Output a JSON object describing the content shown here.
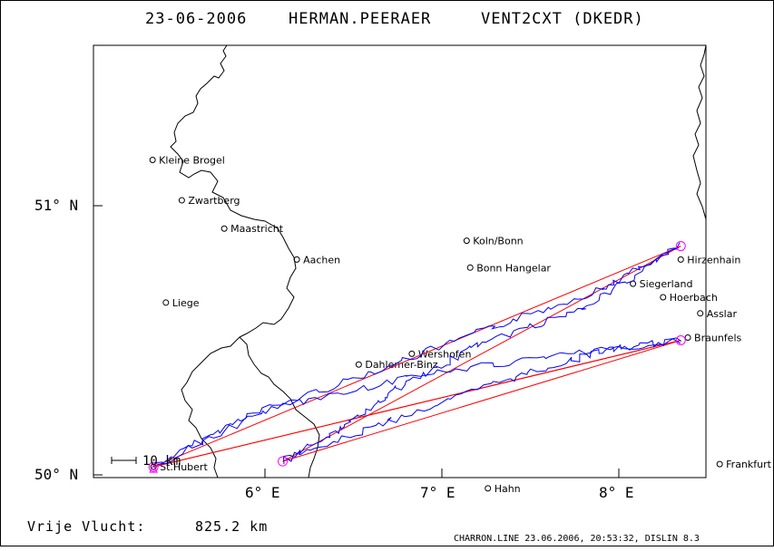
{
  "title": {
    "date": "23-06-2006",
    "pilot": "HERMAN.PEERAER",
    "glider": "VENT2CXT (DKEDR)"
  },
  "axes": {
    "lat_labels": [
      "51° N",
      "50° N"
    ],
    "lon_labels": [
      "6° E",
      "7° E",
      "8° E"
    ],
    "lat_range": [
      49.995,
      51.58
    ],
    "lon_range": [
      5.08,
      8.55
    ]
  },
  "scale": {
    "label": "10 km"
  },
  "places": [
    {
      "name": "Kleine Brogel",
      "lon": 5.365,
      "lat": 51.17
    },
    {
      "name": "Zwartberg",
      "lon": 5.53,
      "lat": 51.02
    },
    {
      "name": "Maastricht",
      "lon": 5.77,
      "lat": 50.915
    },
    {
      "name": "Aachen",
      "lon": 6.18,
      "lat": 50.8
    },
    {
      "name": "Liege",
      "lon": 5.44,
      "lat": 50.64
    },
    {
      "name": "Koln/Bonn",
      "lon": 7.14,
      "lat": 50.87
    },
    {
      "name": "Bonn Hangelar",
      "lon": 7.16,
      "lat": 50.77
    },
    {
      "name": "Siegerland",
      "lon": 8.08,
      "lat": 50.71
    },
    {
      "name": "Hoerbach",
      "lon": 8.25,
      "lat": 50.66
    },
    {
      "name": "Hirzenhain",
      "lon": 8.35,
      "lat": 50.8
    },
    {
      "name": "Asslar",
      "lon": 8.46,
      "lat": 50.6
    },
    {
      "name": "Braunfels",
      "lon": 8.39,
      "lat": 50.51
    },
    {
      "name": "Wershofen",
      "lon": 6.83,
      "lat": 50.45
    },
    {
      "name": "Dahlemer-Binz",
      "lon": 6.53,
      "lat": 50.41
    },
    {
      "name": "St.Hubert",
      "lon": 5.37,
      "lat": 50.03
    },
    {
      "name": "Frankfurt",
      "lon": 8.57,
      "lat": 50.04
    },
    {
      "name": "Hahn",
      "lon": 7.26,
      "lat": 49.95
    }
  ],
  "turnpoints": [
    {
      "lon": 5.37,
      "lat": 50.03
    },
    {
      "lon": 8.35,
      "lat": 50.85
    },
    {
      "lon": 6.1,
      "lat": 50.05
    },
    {
      "lon": 8.35,
      "lat": 50.5
    },
    {
      "lon": 5.37,
      "lat": 50.03
    }
  ],
  "distance": {
    "label": "Vrije Vlucht:",
    "value": "825.2 km"
  },
  "credit": "CHARRON.LINE 23.06.2006, 20:53:32, DISLIN 8.3",
  "colors": {
    "track": "#0000ff",
    "course": "#ff0000",
    "turnpoint": "#ff00ff",
    "border": "#000000"
  }
}
